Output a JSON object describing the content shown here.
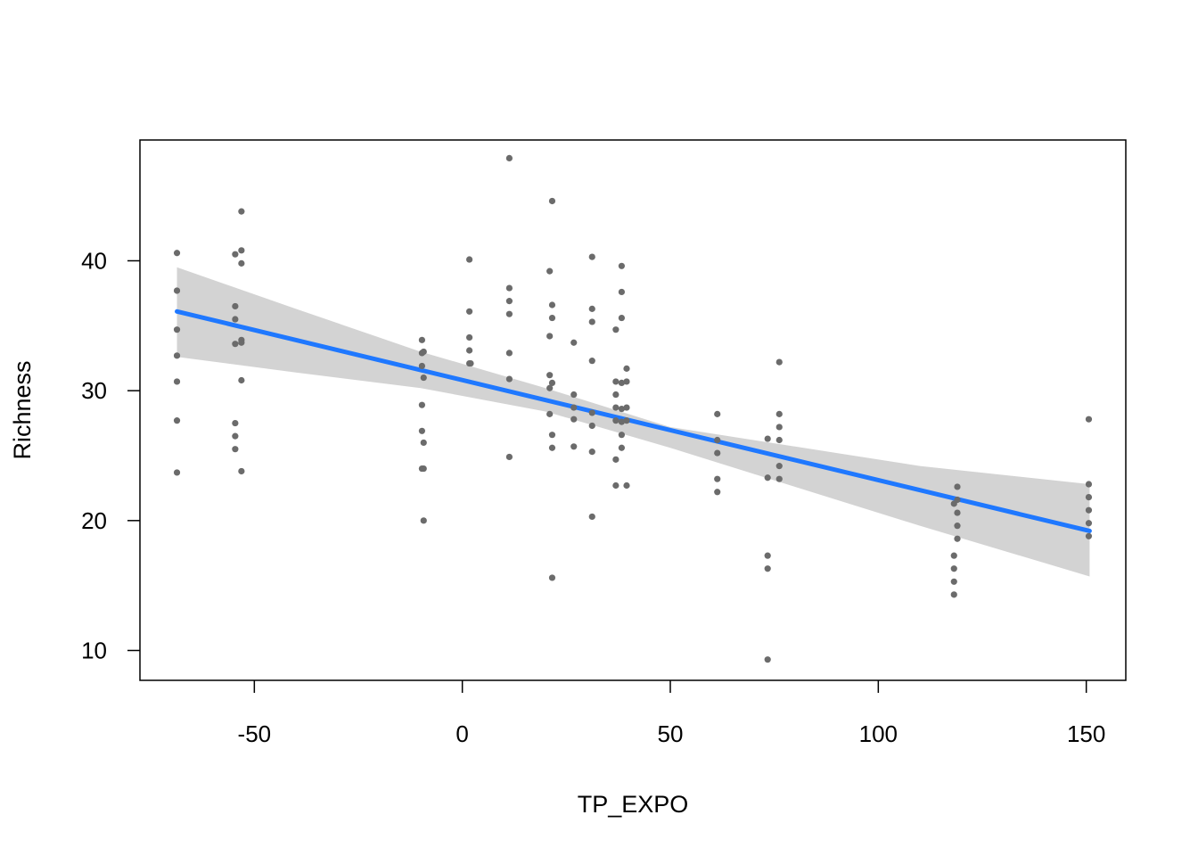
{
  "chart_data": {
    "type": "scatter",
    "title": "",
    "xlabel": "TP_EXPO",
    "ylabel": "Richness",
    "xlim": [
      -77.5,
      159.5
    ],
    "ylim": [
      7.7,
      49.3
    ],
    "x_ticks": [
      -50,
      0,
      50,
      100,
      150
    ],
    "y_ticks": [
      10,
      20,
      30,
      40
    ],
    "x_tick_labels": [
      "-50",
      "0",
      "50",
      "100",
      "150"
    ],
    "y_tick_labels": [
      "10",
      "20",
      "30",
      "40"
    ],
    "grid": false,
    "legend": "none",
    "colors": {
      "points": "#6b6b6b",
      "line": "#1f78ff",
      "band": "#d3d3d3",
      "axis": "#000000"
    },
    "fit": {
      "x_start": -68.6,
      "y_start": 36.1,
      "x_end": 150.8,
      "y_end": 19.2
    },
    "band": [
      {
        "x": -68.6,
        "lo": 32.6,
        "hi": 39.5
      },
      {
        "x": -40,
        "lo": 31.4,
        "hi": 36.3
      },
      {
        "x": -10,
        "lo": 30.2,
        "hi": 33.0
      },
      {
        "x": 20,
        "lo": 28.4,
        "hi": 30.2
      },
      {
        "x": 50,
        "lo": 25.6,
        "hi": 27.2
      },
      {
        "x": 80,
        "lo": 22.6,
        "hi": 25.7
      },
      {
        "x": 110,
        "lo": 19.6,
        "hi": 24.2
      },
      {
        "x": 150.8,
        "lo": 15.7,
        "hi": 22.8
      }
    ],
    "points": [
      {
        "x": -68.6,
        "y": 40.6
      },
      {
        "x": -68.6,
        "y": 37.7
      },
      {
        "x": -68.6,
        "y": 34.7
      },
      {
        "x": -68.6,
        "y": 32.7
      },
      {
        "x": -68.6,
        "y": 30.7
      },
      {
        "x": -68.6,
        "y": 27.7
      },
      {
        "x": -68.6,
        "y": 23.7
      },
      {
        "x": -54.6,
        "y": 40.5
      },
      {
        "x": -54.6,
        "y": 36.5
      },
      {
        "x": -54.6,
        "y": 35.5
      },
      {
        "x": -54.6,
        "y": 33.6
      },
      {
        "x": -54.6,
        "y": 27.5
      },
      {
        "x": -54.6,
        "y": 26.5
      },
      {
        "x": -54.6,
        "y": 25.5
      },
      {
        "x": -53.1,
        "y": 43.8
      },
      {
        "x": -53.1,
        "y": 40.8
      },
      {
        "x": -53.1,
        "y": 39.8
      },
      {
        "x": -53.1,
        "y": 33.9
      },
      {
        "x": -53.1,
        "y": 33.7
      },
      {
        "x": -53.1,
        "y": 30.8
      },
      {
        "x": -53.1,
        "y": 23.8
      },
      {
        "x": -9.7,
        "y": 33.9
      },
      {
        "x": -9.7,
        "y": 32.9
      },
      {
        "x": -9.7,
        "y": 31.9
      },
      {
        "x": -9.7,
        "y": 28.9
      },
      {
        "x": -9.7,
        "y": 26.9
      },
      {
        "x": -9.7,
        "y": 24.0
      },
      {
        "x": -9.3,
        "y": 33.0
      },
      {
        "x": -9.3,
        "y": 31.0
      },
      {
        "x": -9.3,
        "y": 26.0
      },
      {
        "x": -9.3,
        "y": 24.0
      },
      {
        "x": -9.3,
        "y": 20.0
      },
      {
        "x": 1.7,
        "y": 40.1
      },
      {
        "x": 1.7,
        "y": 36.1
      },
      {
        "x": 1.7,
        "y": 34.1
      },
      {
        "x": 1.7,
        "y": 33.1
      },
      {
        "x": 1.7,
        "y": 32.1
      },
      {
        "x": 2.0,
        "y": 32.1
      },
      {
        "x": 11.3,
        "y": 47.9
      },
      {
        "x": 11.3,
        "y": 37.9
      },
      {
        "x": 11.3,
        "y": 36.9
      },
      {
        "x": 11.3,
        "y": 35.9
      },
      {
        "x": 11.3,
        "y": 32.9
      },
      {
        "x": 11.3,
        "y": 30.9
      },
      {
        "x": 11.3,
        "y": 24.9
      },
      {
        "x": 21.0,
        "y": 39.2
      },
      {
        "x": 21.0,
        "y": 34.2
      },
      {
        "x": 21.0,
        "y": 31.2
      },
      {
        "x": 21.0,
        "y": 30.2
      },
      {
        "x": 21.0,
        "y": 28.2
      },
      {
        "x": 21.6,
        "y": 44.6
      },
      {
        "x": 21.6,
        "y": 36.6
      },
      {
        "x": 21.6,
        "y": 35.6
      },
      {
        "x": 21.6,
        "y": 30.6
      },
      {
        "x": 21.6,
        "y": 26.6
      },
      {
        "x": 21.6,
        "y": 25.6
      },
      {
        "x": 21.6,
        "y": 15.6
      },
      {
        "x": 26.8,
        "y": 33.7
      },
      {
        "x": 26.8,
        "y": 29.7
      },
      {
        "x": 26.8,
        "y": 28.7
      },
      {
        "x": 26.8,
        "y": 27.8
      },
      {
        "x": 26.8,
        "y": 25.7
      },
      {
        "x": 31.2,
        "y": 40.3
      },
      {
        "x": 31.2,
        "y": 36.3
      },
      {
        "x": 31.2,
        "y": 35.3
      },
      {
        "x": 31.2,
        "y": 32.3
      },
      {
        "x": 31.2,
        "y": 28.3
      },
      {
        "x": 31.2,
        "y": 27.3
      },
      {
        "x": 31.2,
        "y": 25.3
      },
      {
        "x": 31.2,
        "y": 20.3
      },
      {
        "x": 36.9,
        "y": 34.7
      },
      {
        "x": 36.9,
        "y": 30.7
      },
      {
        "x": 36.9,
        "y": 29.7
      },
      {
        "x": 36.9,
        "y": 28.7
      },
      {
        "x": 36.9,
        "y": 27.7
      },
      {
        "x": 36.9,
        "y": 24.7
      },
      {
        "x": 36.9,
        "y": 22.7
      },
      {
        "x": 38.3,
        "y": 39.6
      },
      {
        "x": 38.3,
        "y": 37.6
      },
      {
        "x": 38.3,
        "y": 35.6
      },
      {
        "x": 38.3,
        "y": 30.6
      },
      {
        "x": 38.3,
        "y": 28.6
      },
      {
        "x": 38.3,
        "y": 27.6
      },
      {
        "x": 38.3,
        "y": 26.6
      },
      {
        "x": 38.3,
        "y": 25.6
      },
      {
        "x": 39.5,
        "y": 31.7
      },
      {
        "x": 39.5,
        "y": 30.7
      },
      {
        "x": 39.5,
        "y": 28.7
      },
      {
        "x": 39.5,
        "y": 27.7
      },
      {
        "x": 39.5,
        "y": 22.7
      },
      {
        "x": 61.3,
        "y": 28.2
      },
      {
        "x": 61.3,
        "y": 26.2
      },
      {
        "x": 61.3,
        "y": 25.2
      },
      {
        "x": 61.3,
        "y": 23.2
      },
      {
        "x": 61.3,
        "y": 22.2
      },
      {
        "x": 73.4,
        "y": 26.3
      },
      {
        "x": 73.4,
        "y": 23.3
      },
      {
        "x": 73.4,
        "y": 17.3
      },
      {
        "x": 73.4,
        "y": 16.3
      },
      {
        "x": 73.4,
        "y": 9.3
      },
      {
        "x": 76.2,
        "y": 32.2
      },
      {
        "x": 76.2,
        "y": 28.2
      },
      {
        "x": 76.2,
        "y": 27.2
      },
      {
        "x": 76.2,
        "y": 26.2
      },
      {
        "x": 76.2,
        "y": 24.2
      },
      {
        "x": 76.2,
        "y": 23.2
      },
      {
        "x": 118.2,
        "y": 21.3
      },
      {
        "x": 118.2,
        "y": 17.3
      },
      {
        "x": 118.2,
        "y": 16.3
      },
      {
        "x": 118.2,
        "y": 15.3
      },
      {
        "x": 118.2,
        "y": 14.3
      },
      {
        "x": 119.0,
        "y": 22.6
      },
      {
        "x": 119.0,
        "y": 21.6
      },
      {
        "x": 119.0,
        "y": 20.6
      },
      {
        "x": 119.0,
        "y": 19.6
      },
      {
        "x": 119.0,
        "y": 18.6
      },
      {
        "x": 150.6,
        "y": 27.8
      },
      {
        "x": 150.6,
        "y": 22.8
      },
      {
        "x": 150.6,
        "y": 21.8
      },
      {
        "x": 150.6,
        "y": 20.8
      },
      {
        "x": 150.6,
        "y": 19.8
      },
      {
        "x": 150.6,
        "y": 18.8
      }
    ]
  }
}
